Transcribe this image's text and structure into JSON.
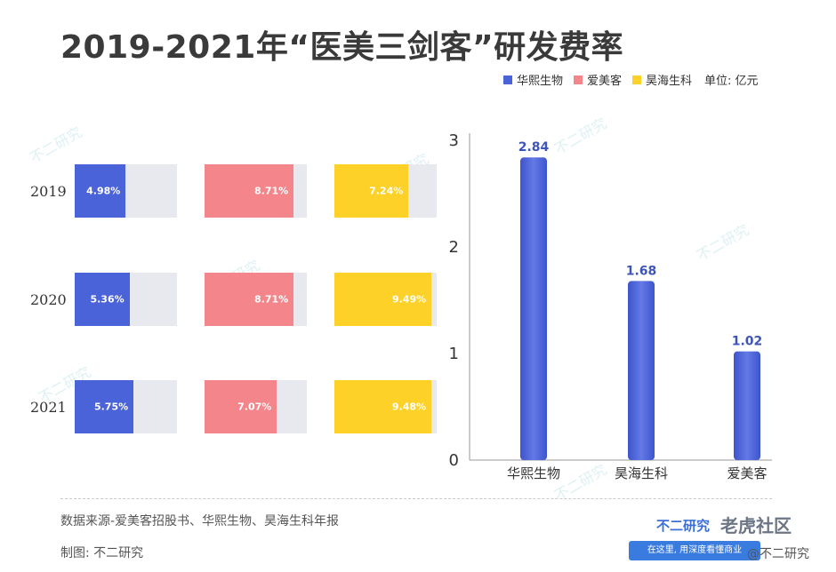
{
  "title": "2019-2021年“医美三剑客”研发费率",
  "legend": {
    "items": [
      {
        "name": "华熙生物",
        "color": "#4b63d8"
      },
      {
        "name": "爱美客",
        "color": "#f4868b"
      },
      {
        "name": "昊海生科",
        "color": "#fdd128"
      }
    ],
    "unit": "单位: 亿元"
  },
  "footer": {
    "source": "数据来源-爱美客招股书、华熙生物、昊海生科年报",
    "maker": "制图: 不二研究",
    "brand": "不二研究",
    "slogan": "在这里, 用深度看懂商业",
    "watermark": "老虎社区",
    "watermark_handle": "@不二研究"
  },
  "chart_data": [
    {
      "type": "bar",
      "orientation": "horizontal",
      "categories": [
        "2019",
        "2020",
        "2021"
      ],
      "series": [
        {
          "name": "华熙生物",
          "values": [
            4.98,
            5.36,
            5.75
          ],
          "labels": [
            "4.98%",
            "5.36%",
            "5.75%"
          ],
          "color": "#4b63d8"
        },
        {
          "name": "爱美客",
          "values": [
            8.71,
            8.71,
            7.07
          ],
          "labels": [
            "8.71%",
            "8.71%",
            "7.07%"
          ],
          "color": "#f4868b"
        },
        {
          "name": "昊海生科",
          "values": [
            7.24,
            9.49,
            9.48
          ],
          "labels": [
            "7.24%",
            "9.49%",
            "9.48%"
          ],
          "color": "#fdd128"
        }
      ],
      "xlim": [
        0,
        10
      ]
    },
    {
      "type": "bar",
      "categories": [
        "华熙生物",
        "昊海生科",
        "爱美客"
      ],
      "values": [
        2.84,
        1.68,
        1.02
      ],
      "value_labels": [
        "2.84",
        "1.68",
        "1.02"
      ],
      "ylim": [
        0,
        3
      ],
      "yticks": [
        "0",
        "1",
        "2",
        "3"
      ],
      "color": "#4b63d8"
    }
  ]
}
